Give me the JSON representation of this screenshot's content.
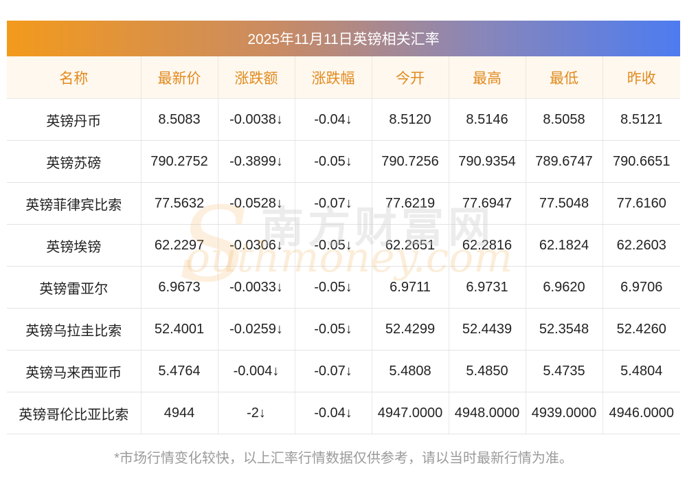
{
  "title": "2025年11月11日英镑相关汇率",
  "headers": [
    "名称",
    "最新价",
    "涨跌额",
    "涨跌幅",
    "今开",
    "最高",
    "最低",
    "昨收"
  ],
  "rows": [
    {
      "name": "英镑丹币",
      "latest": "8.5083",
      "change": "-0.0038↓",
      "change_pct": "-0.04↓",
      "open": "8.5120",
      "high": "8.5146",
      "low": "8.5058",
      "prev_close": "8.5121"
    },
    {
      "name": "英镑苏磅",
      "latest": "790.2752",
      "change": "-0.3899↓",
      "change_pct": "-0.05↓",
      "open": "790.7256",
      "high": "790.9354",
      "low": "789.6747",
      "prev_close": "790.6651"
    },
    {
      "name": "英镑菲律宾比索",
      "latest": "77.5632",
      "change": "-0.0528↓",
      "change_pct": "-0.07↓",
      "open": "77.6219",
      "high": "77.6947",
      "low": "77.5048",
      "prev_close": "77.6160"
    },
    {
      "name": "英镑埃镑",
      "latest": "62.2297",
      "change": "-0.0306↓",
      "change_pct": "-0.05↓",
      "open": "62.2651",
      "high": "62.2816",
      "low": "62.1824",
      "prev_close": "62.2603"
    },
    {
      "name": "英镑雷亚尔",
      "latest": "6.9673",
      "change": "-0.0033↓",
      "change_pct": "-0.05↓",
      "open": "6.9711",
      "high": "6.9731",
      "low": "6.9620",
      "prev_close": "6.9706"
    },
    {
      "name": "英镑乌拉圭比索",
      "latest": "52.4001",
      "change": "-0.0259↓",
      "change_pct": "-0.05↓",
      "open": "52.4299",
      "high": "52.4439",
      "low": "52.3548",
      "prev_close": "52.4260"
    },
    {
      "name": "英镑马来西亚币",
      "latest": "5.4764",
      "change": "-0.004↓",
      "change_pct": "-0.07↓",
      "open": "5.4808",
      "high": "5.4850",
      "low": "5.4735",
      "prev_close": "5.4804"
    },
    {
      "name": "英镑哥伦比亚比索",
      "latest": "4944",
      "change": "-2↓",
      "change_pct": "-0.04↓",
      "open": "4947.0000",
      "high": "4948.0000",
      "low": "4939.0000",
      "prev_close": "4946.0000"
    }
  ],
  "watermark": {
    "cn": "南方财富网",
    "en": "outhmoney.com",
    "s": "S"
  },
  "footnote": "*市场行情变化较快，以上汇率行情数据仅供参考，请以当时最新行情为准。",
  "colors": {
    "header_text": "#e08a1e",
    "down": "#1f8f1f",
    "gradient_start": "#f39a1c",
    "gradient_end": "#4d7cf0"
  }
}
